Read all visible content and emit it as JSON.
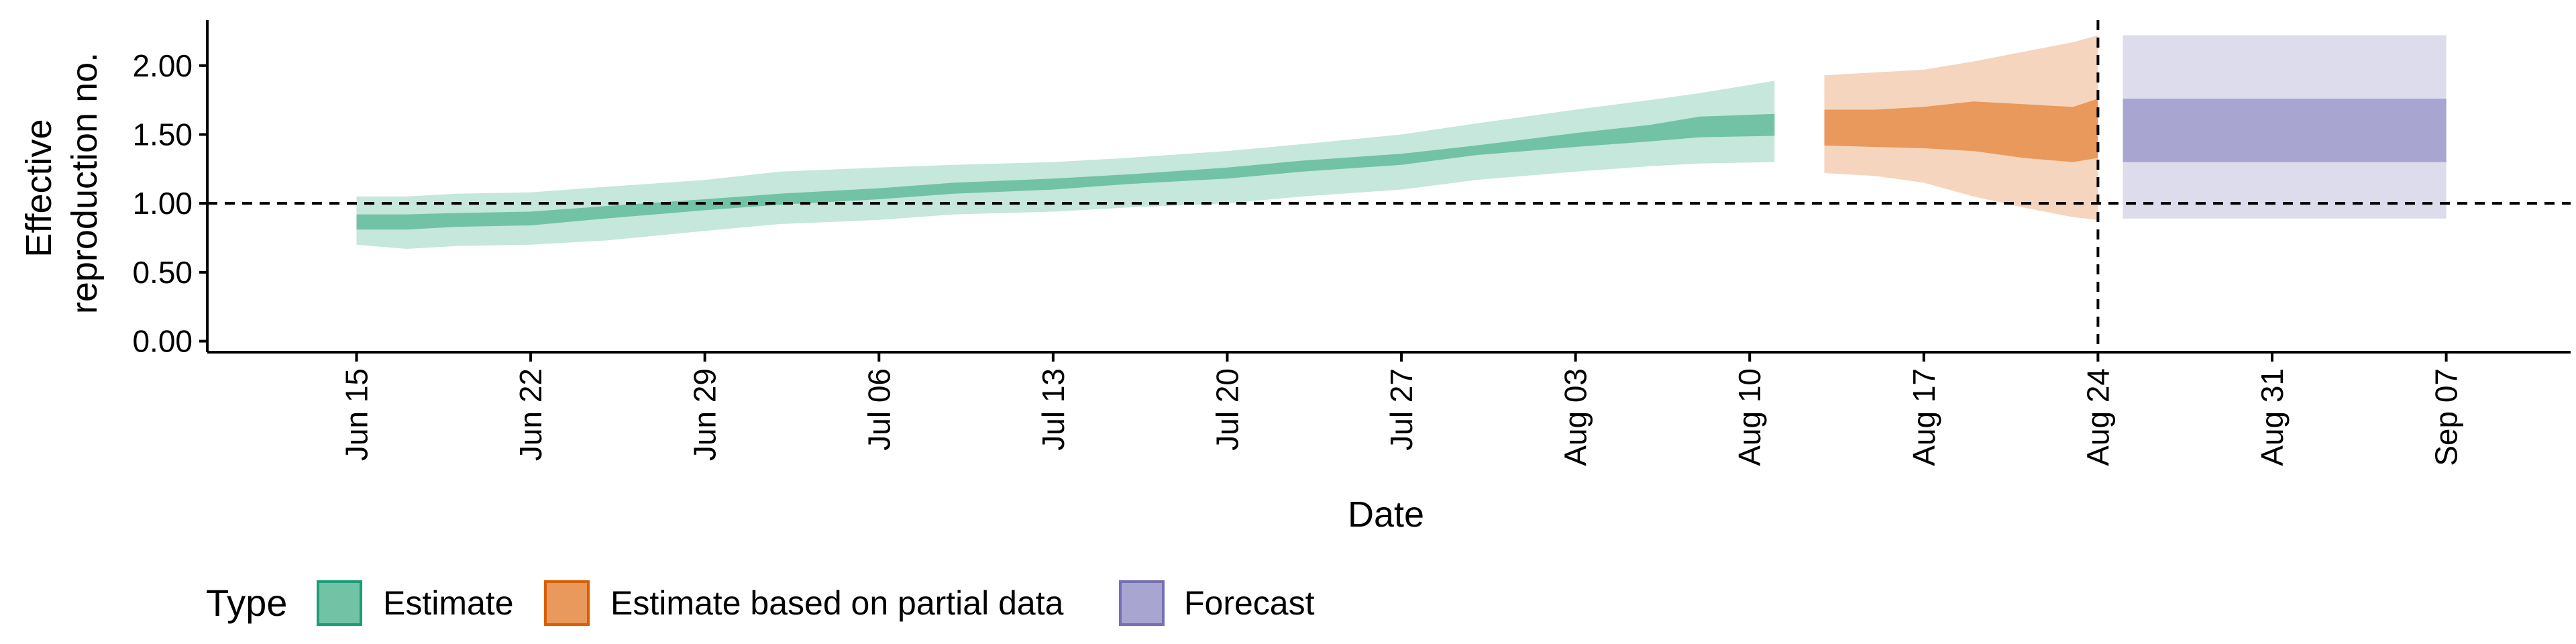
{
  "chart_data": {
    "type": "area",
    "title": "",
    "xlabel": "Date",
    "ylabel_lines": [
      "Effective",
      "reproduction no."
    ],
    "ylim": [
      -0.08,
      2.33
    ],
    "xlim": [
      "2020-06-09",
      "2020-09-12"
    ],
    "y_ticks": [
      {
        "value": 0.0,
        "label": "0.00"
      },
      {
        "value": 0.5,
        "label": "0.50"
      },
      {
        "value": 1.0,
        "label": "1.00"
      },
      {
        "value": 1.5,
        "label": "1.50"
      },
      {
        "value": 2.0,
        "label": "2.00"
      }
    ],
    "x_ticks": [
      {
        "date": "2020-06-15",
        "label": "Jun 15"
      },
      {
        "date": "2020-06-22",
        "label": "Jun 22"
      },
      {
        "date": "2020-06-29",
        "label": "Jun 29"
      },
      {
        "date": "2020-07-06",
        "label": "Jul 06"
      },
      {
        "date": "2020-07-13",
        "label": "Jul 13"
      },
      {
        "date": "2020-07-20",
        "label": "Jul 20"
      },
      {
        "date": "2020-07-27",
        "label": "Jul 27"
      },
      {
        "date": "2020-08-03",
        "label": "Aug 03"
      },
      {
        "date": "2020-08-10",
        "label": "Aug 10"
      },
      {
        "date": "2020-08-17",
        "label": "Aug 17"
      },
      {
        "date": "2020-08-24",
        "label": "Aug 24"
      },
      {
        "date": "2020-08-31",
        "label": "Aug 31"
      },
      {
        "date": "2020-09-07",
        "label": "Sep 07"
      }
    ],
    "reference_line_y": 1.0,
    "reference_line_x": "2020-08-24",
    "legend": {
      "title": "Type",
      "position": "bottom-left",
      "entries": [
        {
          "label": "Estimate",
          "fill": "#72c2a6",
          "border": "#1b9e77"
        },
        {
          "label": "Estimate based on partial data",
          "fill": "#e8995b",
          "border": "#d95f02"
        },
        {
          "label": "Forecast",
          "fill": "#a8a5d0",
          "border": "#7570b3"
        }
      ]
    },
    "colors": {
      "estimate_outer": "#c5e7dc",
      "estimate_inner": "#72c2a6",
      "partial_outer": "#f5d5be",
      "partial_inner": "#e8995b",
      "forecast_outer": "#dddcec",
      "forecast_inner": "#a8a5d0"
    },
    "series": [
      {
        "name": "Estimate",
        "x": [
          "2020-06-15",
          "2020-06-17",
          "2020-06-19",
          "2020-06-22",
          "2020-06-25",
          "2020-06-29",
          "2020-07-02",
          "2020-07-06",
          "2020-07-09",
          "2020-07-13",
          "2020-07-16",
          "2020-07-20",
          "2020-07-23",
          "2020-07-27",
          "2020-07-30",
          "2020-08-03",
          "2020-08-06",
          "2020-08-08",
          "2020-08-11"
        ],
        "outer_upper": [
          1.05,
          1.05,
          1.07,
          1.08,
          1.12,
          1.17,
          1.23,
          1.26,
          1.28,
          1.3,
          1.33,
          1.38,
          1.43,
          1.5,
          1.58,
          1.68,
          1.75,
          1.8,
          1.89
        ],
        "inner_upper": [
          0.92,
          0.92,
          0.93,
          0.94,
          0.98,
          1.03,
          1.07,
          1.11,
          1.15,
          1.18,
          1.21,
          1.26,
          1.31,
          1.36,
          1.42,
          1.51,
          1.57,
          1.63,
          1.65
        ],
        "inner_lower": [
          0.81,
          0.81,
          0.83,
          0.84,
          0.89,
          0.95,
          0.99,
          1.03,
          1.07,
          1.1,
          1.14,
          1.18,
          1.23,
          1.28,
          1.35,
          1.41,
          1.45,
          1.48,
          1.49
        ],
        "outer_lower": [
          0.7,
          0.67,
          0.69,
          0.7,
          0.73,
          0.8,
          0.85,
          0.88,
          0.92,
          0.94,
          0.97,
          1.0,
          1.05,
          1.1,
          1.17,
          1.23,
          1.27,
          1.29,
          1.3
        ]
      },
      {
        "name": "Estimate based on partial data",
        "x": [
          "2020-08-13",
          "2020-08-15",
          "2020-08-17",
          "2020-08-19",
          "2020-08-21",
          "2020-08-23",
          "2020-08-24"
        ],
        "outer_upper": [
          1.93,
          1.95,
          1.97,
          2.03,
          2.1,
          2.17,
          2.22
        ],
        "inner_upper": [
          1.68,
          1.68,
          1.7,
          1.74,
          1.72,
          1.7,
          1.76
        ],
        "inner_lower": [
          1.42,
          1.41,
          1.4,
          1.38,
          1.33,
          1.3,
          1.33
        ],
        "outer_lower": [
          1.22,
          1.2,
          1.15,
          1.05,
          0.97,
          0.9,
          0.88
        ]
      },
      {
        "name": "Forecast",
        "x": [
          "2020-08-25",
          "2020-09-07"
        ],
        "outer_upper": [
          2.22,
          2.22
        ],
        "inner_upper": [
          1.76,
          1.76
        ],
        "inner_lower": [
          1.3,
          1.3
        ],
        "outer_lower": [
          0.89,
          0.89
        ]
      }
    ]
  }
}
